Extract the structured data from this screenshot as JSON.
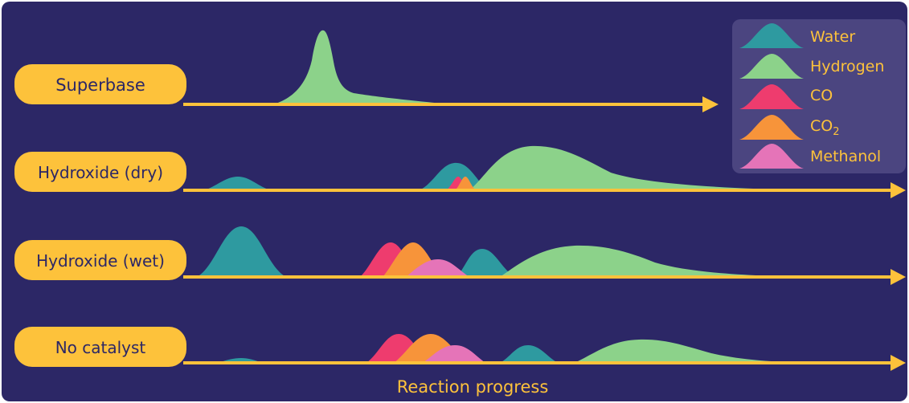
{
  "colors": {
    "background": "#2c2766",
    "arrow": "#fdc23b",
    "label_fill": "#fdc23b",
    "label_text": "#2c2766",
    "legend_bg": "#4b4580",
    "legend_text": "#fdc23b",
    "water": "#2e9aa0",
    "hydrogen": "#8cd28a",
    "co": "#ee3c6e",
    "co2": "#f7943a",
    "methanol": "#e574b8"
  },
  "legend": [
    {
      "key": "water",
      "label": "Water",
      "sub": ""
    },
    {
      "key": "hydrogen",
      "label": "Hydrogen",
      "sub": ""
    },
    {
      "key": "co",
      "label": "CO",
      "sub": ""
    },
    {
      "key": "co2",
      "label": "CO",
      "sub": "2"
    },
    {
      "key": "methanol",
      "label": "Methanol",
      "sub": ""
    }
  ],
  "rows": [
    {
      "label": "Superbase"
    },
    {
      "label": "Hydroxide (dry)"
    },
    {
      "label": "Hydroxide (wet)"
    },
    {
      "label": "No catalyst"
    }
  ],
  "x_axis_label": "Reaction progress"
}
